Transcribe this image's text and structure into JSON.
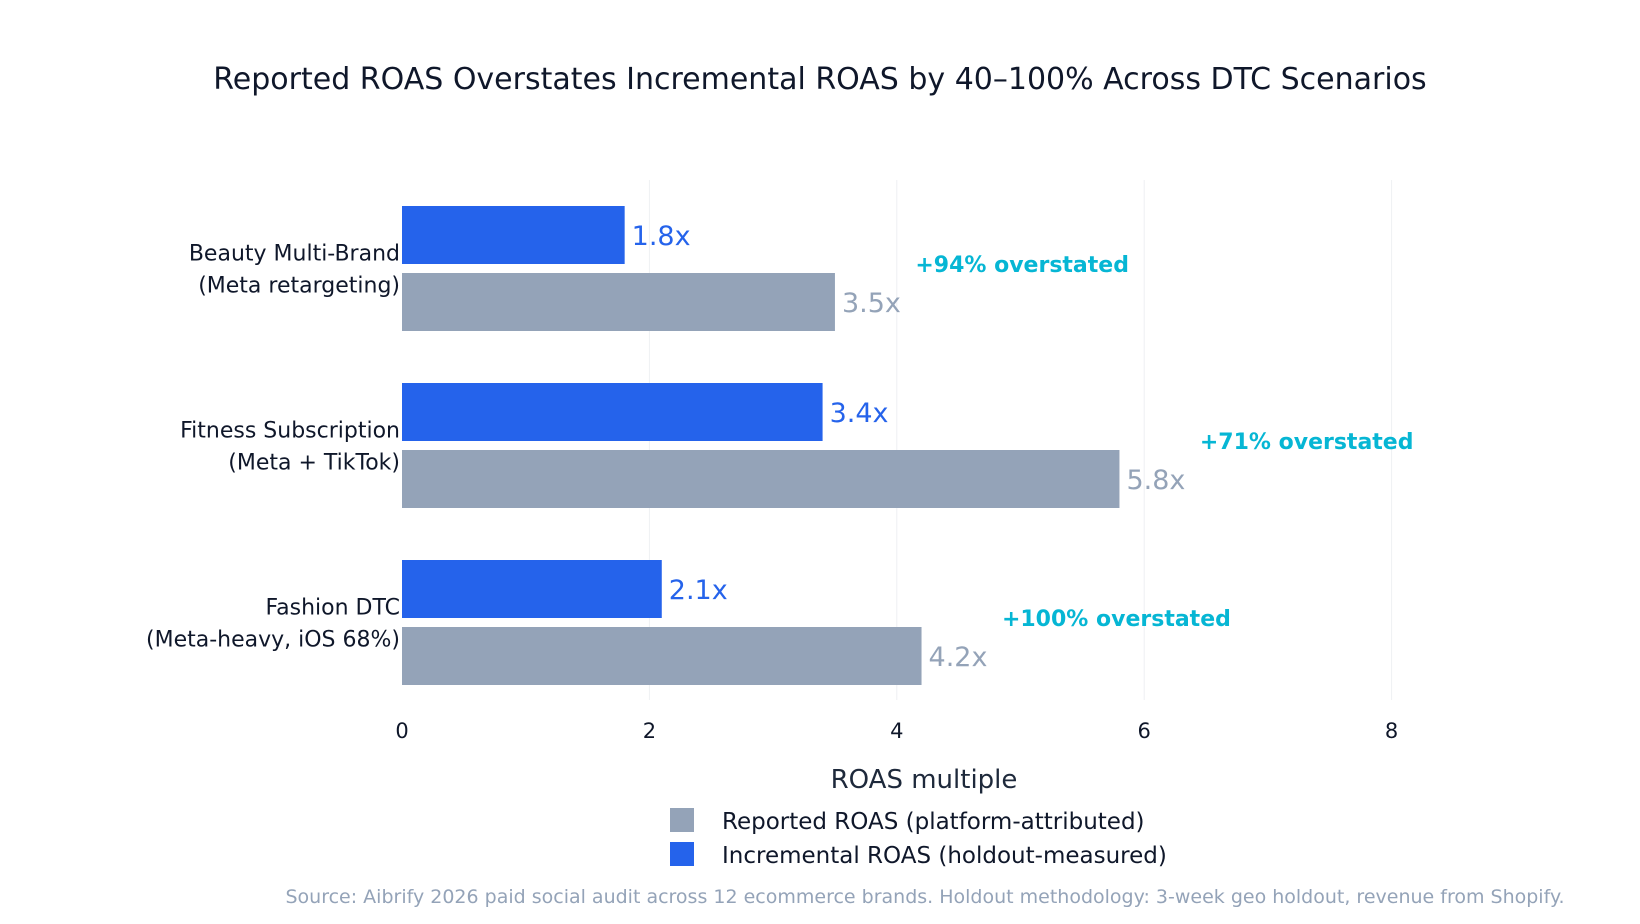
{
  "chart_data": {
    "type": "bar",
    "orientation": "horizontal",
    "title": "Reported ROAS Overstates Incremental ROAS by 40–100% Across DTC Scenarios",
    "xlabel": "ROAS multiple",
    "ylabel": "",
    "xlim": [
      0,
      8.8
    ],
    "xticks": [
      0,
      2,
      4,
      6,
      8
    ],
    "grid": true,
    "categories": [
      [
        "Beauty Multi-Brand",
        "(Meta retargeting)"
      ],
      [
        "Fitness Subscription",
        "(Meta + TikTok)"
      ],
      [
        "Fashion DTC",
        "(Meta-heavy, iOS 68%)"
      ]
    ],
    "series": [
      {
        "name": "Incremental ROAS (holdout-measured)",
        "color": "#2563eb",
        "values": [
          1.8,
          3.4,
          2.1
        ],
        "labels": [
          "1.8x",
          "3.4x",
          "2.1x"
        ]
      },
      {
        "name": "Reported ROAS (platform-attributed)",
        "color": "#94a3b8",
        "values": [
          3.5,
          5.8,
          4.2
        ],
        "labels": [
          "3.5x",
          "5.8x",
          "4.2x"
        ]
      }
    ],
    "annotations": [
      "+94% overstated",
      "+71% overstated",
      "+100% overstated"
    ],
    "annotation_color": "#06b6d4",
    "legend": {
      "placement": "bottom",
      "items": [
        {
          "label": "Reported ROAS (platform-attributed)",
          "color": "#94a3b8"
        },
        {
          "label": "Incremental ROAS (holdout-measured)",
          "color": "#2563eb"
        }
      ]
    },
    "source": "Source: Aibrify 2026 paid social audit across 12 ecommerce brands. Holdout methodology: 3-week geo holdout, revenue from Shopify."
  }
}
